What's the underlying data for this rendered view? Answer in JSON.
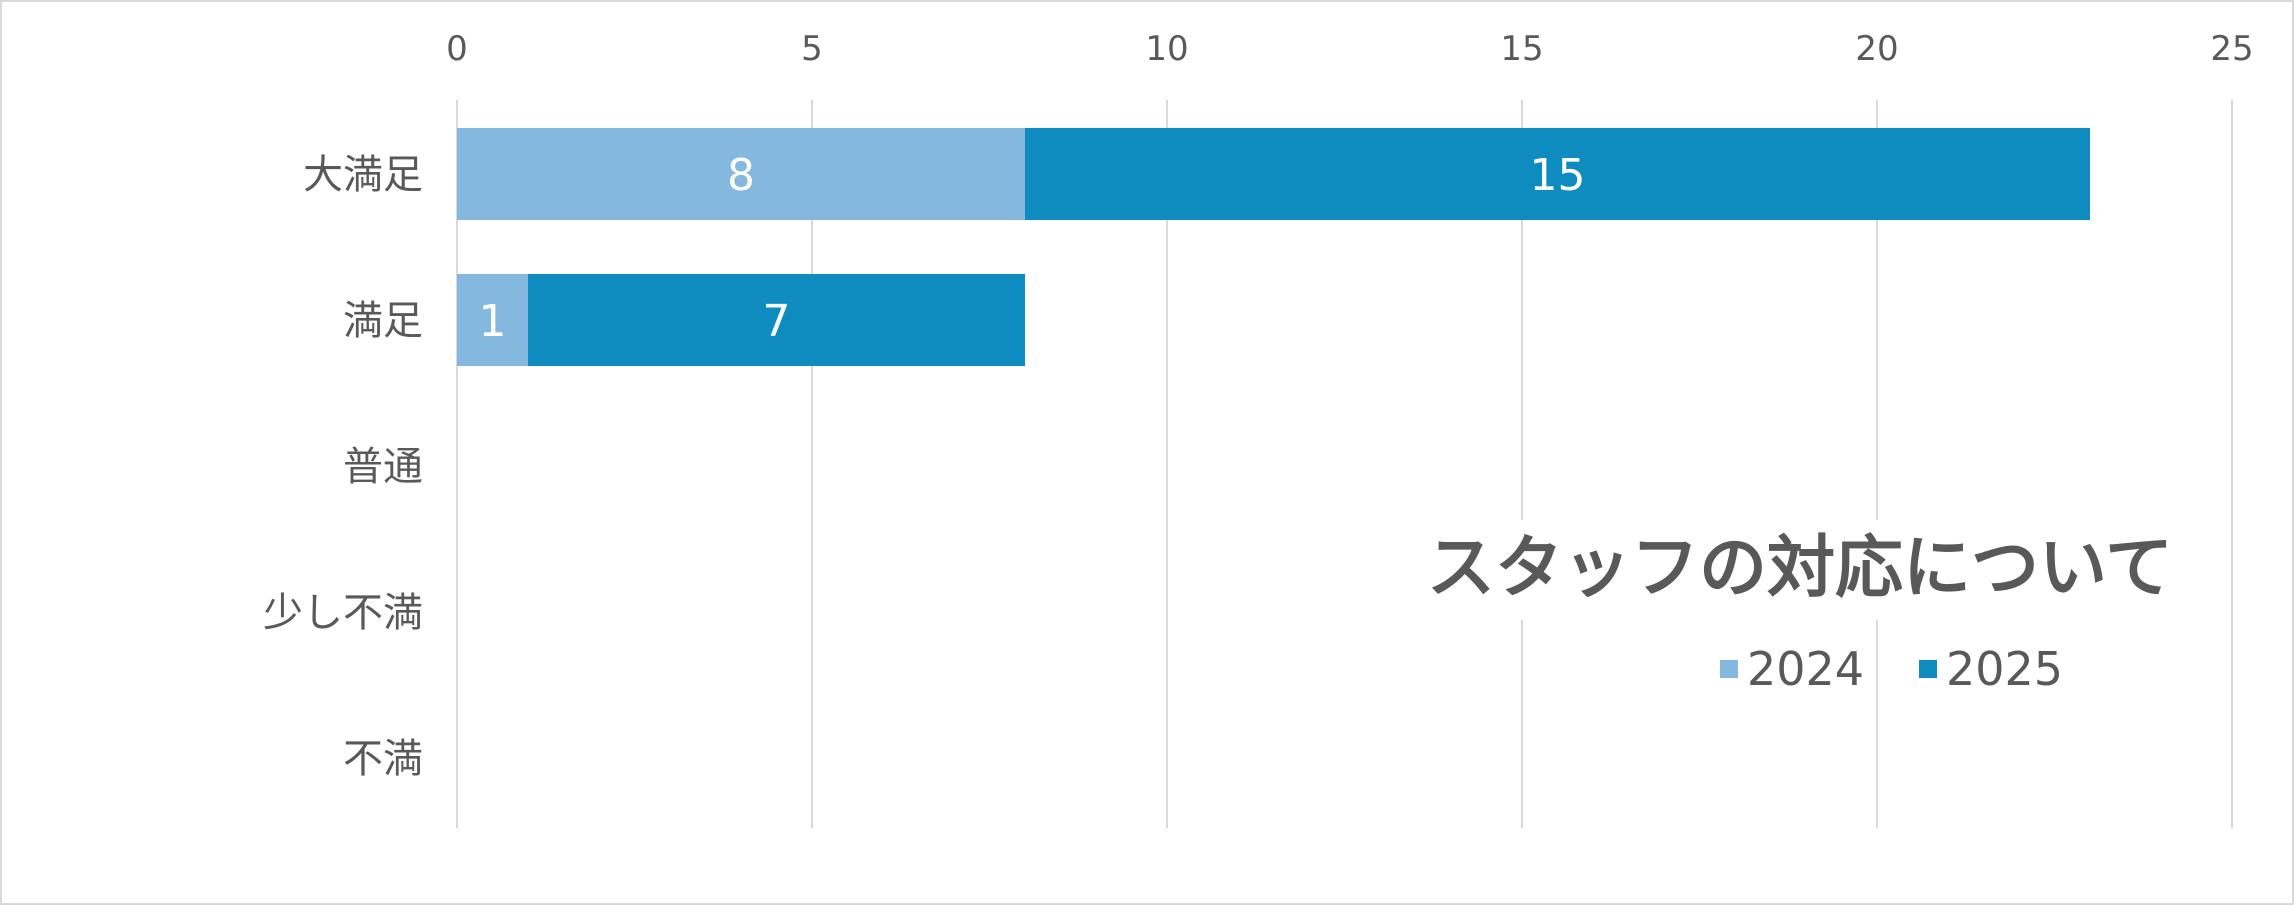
{
  "chart_data": {
    "type": "bar",
    "orientation": "horizontal",
    "stacked": true,
    "title": "スタッフの対応について",
    "categories": [
      "大満足",
      "満足",
      "普通",
      "少し不満",
      "不満"
    ],
    "series": [
      {
        "name": "2024",
        "values": [
          8,
          1,
          0,
          0,
          0
        ],
        "color": "#85b8df"
      },
      {
        "name": "2025",
        "values": [
          15,
          7,
          0,
          0,
          0
        ],
        "color": "#0e8bbf"
      }
    ],
    "xlim": [
      0,
      25
    ],
    "xticks": [
      "0",
      "5",
      "10",
      "15",
      "20",
      "25"
    ],
    "xlabel": "",
    "ylabel": "",
    "xaxis_position": "top",
    "grid": true,
    "legend_position": "bottom-right",
    "data_label_color": "#ffffff",
    "grid_color": "#d9d9d9",
    "text_color": "#595959"
  }
}
